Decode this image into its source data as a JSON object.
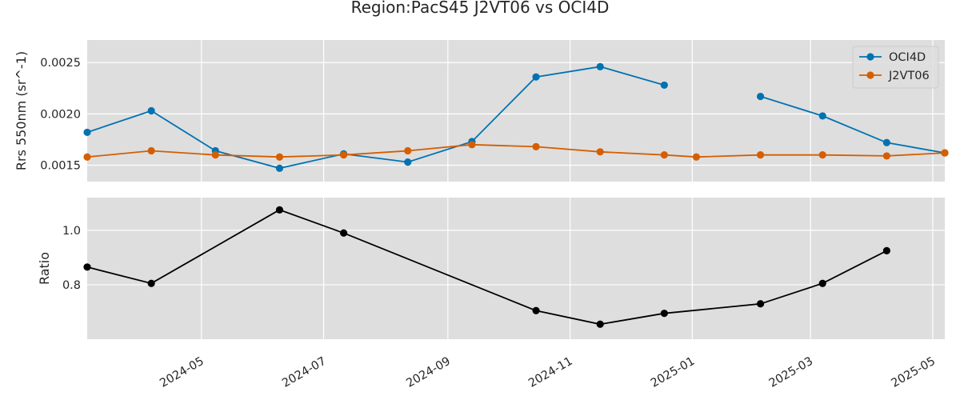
{
  "chart_data": {
    "title": "Region:PacS45 J2VT06 vs OCI4D",
    "x_tick_labels": [
      "2024-05",
      "2024-07",
      "2024-09",
      "2024-11",
      "2025-01",
      "2025-03",
      "2025-05"
    ],
    "x_tick_dates": [
      "2024-05-01",
      "2024-07-01",
      "2024-09-01",
      "2024-11-01",
      "2025-01-01",
      "2025-03-01",
      "2025-05-01"
    ],
    "xlim": [
      "2024-03-05",
      "2025-05-07"
    ],
    "grid": true,
    "panels": [
      {
        "type": "line",
        "ylabel": "Rrs 550nm (sr^-1)",
        "ylim": [
          0.00134,
          0.00272
        ],
        "y_ticks": [
          0.0015,
          0.002,
          0.0025
        ],
        "y_tick_labels": [
          "0.0015",
          "0.0020",
          "0.0025"
        ],
        "legend": "top-right",
        "series": [
          {
            "name": "OCI4D",
            "color": "#0072b2",
            "points": [
              {
                "x": "2024-03-05",
                "y": 0.00182
              },
              {
                "x": "2024-04-06",
                "y": 0.00203
              },
              {
                "x": "2024-05-08",
                "y": 0.00164
              },
              {
                "x": "2024-06-09",
                "y": 0.00147
              },
              {
                "x": "2024-07-11",
                "y": 0.00161
              },
              {
                "x": "2024-08-12",
                "y": 0.00153
              },
              {
                "x": "2024-09-13",
                "y": 0.00173
              },
              {
                "x": "2024-10-15",
                "y": 0.00236
              },
              {
                "x": "2024-11-16",
                "y": 0.00246
              },
              {
                "x": "2024-12-18",
                "y": 0.00228
              },
              {
                "x": "2025-02-04",
                "y": 0.00217
              },
              {
                "x": "2025-03-07",
                "y": 0.00198
              },
              {
                "x": "2025-04-08",
                "y": 0.00172
              },
              {
                "x": "2025-05-07",
                "y": 0.00162
              }
            ],
            "segments": [
              [
                0,
                9
              ],
              [
                10,
                13
              ]
            ]
          },
          {
            "name": "J2VT06",
            "color": "#d55e00",
            "points": [
              {
                "x": "2024-03-05",
                "y": 0.00158
              },
              {
                "x": "2024-04-06",
                "y": 0.00164
              },
              {
                "x": "2024-05-08",
                "y": 0.0016
              },
              {
                "x": "2024-06-09",
                "y": 0.00158
              },
              {
                "x": "2024-07-11",
                "y": 0.0016
              },
              {
                "x": "2024-08-12",
                "y": 0.00164
              },
              {
                "x": "2024-09-13",
                "y": 0.0017
              },
              {
                "x": "2024-10-15",
                "y": 0.00168
              },
              {
                "x": "2024-11-16",
                "y": 0.00163
              },
              {
                "x": "2024-12-18",
                "y": 0.0016
              },
              {
                "x": "2025-01-03",
                "y": 0.00158
              },
              {
                "x": "2025-02-04",
                "y": 0.0016
              },
              {
                "x": "2025-03-07",
                "y": 0.0016
              },
              {
                "x": "2025-04-08",
                "y": 0.00159
              },
              {
                "x": "2025-05-07",
                "y": 0.00162
              }
            ],
            "segments": [
              [
                0,
                14
              ]
            ]
          }
        ]
      },
      {
        "type": "line",
        "ylabel": "Ratio",
        "ylim": [
          0.6,
          1.12
        ],
        "y_ticks": [
          0.8,
          1.0
        ],
        "y_tick_labels": [
          "0.8",
          "1.0"
        ],
        "series": [
          {
            "color": "#000000",
            "points": [
              {
                "x": "2024-03-05",
                "y": 0.865
              },
              {
                "x": "2024-04-06",
                "y": 0.805
              },
              {
                "x": "2024-06-09",
                "y": 1.075
              },
              {
                "x": "2024-07-11",
                "y": 0.99
              },
              {
                "x": "2024-10-15",
                "y": 0.705
              },
              {
                "x": "2024-11-16",
                "y": 0.655
              },
              {
                "x": "2024-12-18",
                "y": 0.695
              },
              {
                "x": "2025-02-04",
                "y": 0.73
              },
              {
                "x": "2025-03-07",
                "y": 0.805
              },
              {
                "x": "2025-04-08",
                "y": 0.925
              }
            ],
            "segments": [
              [
                0,
                9
              ]
            ]
          }
        ]
      }
    ]
  }
}
